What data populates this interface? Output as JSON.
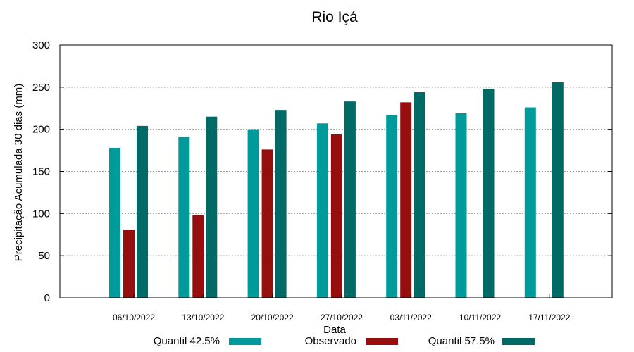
{
  "chart_data": {
    "type": "bar",
    "title": "Rio Içá",
    "xlabel": "Data",
    "ylabel": "Precipitação Acumulada 30 dias (mm)",
    "ylim": [
      0,
      300
    ],
    "yticks": [
      0,
      50,
      100,
      150,
      200,
      250,
      300
    ],
    "grid": true,
    "legend_position": "bottom",
    "categories": [
      "06/10/2022",
      "13/10/2022",
      "20/10/2022",
      "27/10/2022",
      "03/11/2022",
      "10/11/2022",
      "17/11/2022"
    ],
    "series": [
      {
        "name": "Quantil 42.5%",
        "color": "#009a9a",
        "values": [
          178,
          191,
          200,
          207,
          217,
          219,
          226
        ]
      },
      {
        "name": "Observado",
        "color": "#960f0f",
        "values": [
          81,
          98,
          176,
          194,
          232,
          null,
          null
        ]
      },
      {
        "name": "Quantil 57.5%",
        "color": "#006a66",
        "values": [
          204,
          215,
          223,
          233,
          244,
          248,
          256
        ]
      }
    ]
  }
}
